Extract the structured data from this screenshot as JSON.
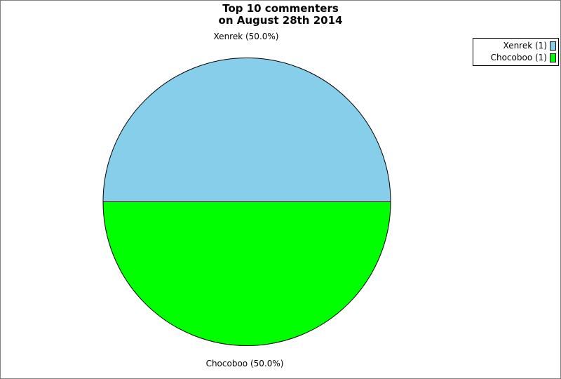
{
  "title": {
    "line1": "Top 10 commenters",
    "line2": "on August 28th 2014"
  },
  "chart_data": {
    "type": "pie",
    "title": "Top 10 commenters on August 28th 2014",
    "slices": [
      {
        "name": "Xenrek",
        "value": 1,
        "percent": 50.0,
        "color": "#87CEEB",
        "callout_label": "Xenrek (50.0%)",
        "legend_label": "Xenrek (1)"
      },
      {
        "name": "Chocoboo",
        "value": 1,
        "percent": 50.0,
        "color": "#00FF00",
        "callout_label": "Chocoboo (50.0%)",
        "legend_label": "Chocoboo (1)"
      }
    ],
    "outline_color": "#000000",
    "start_angle_deg": 180,
    "direction": "clockwise",
    "legend_position": "top-right",
    "background": "#FFFFFF",
    "frame_border_color": "#808080"
  }
}
